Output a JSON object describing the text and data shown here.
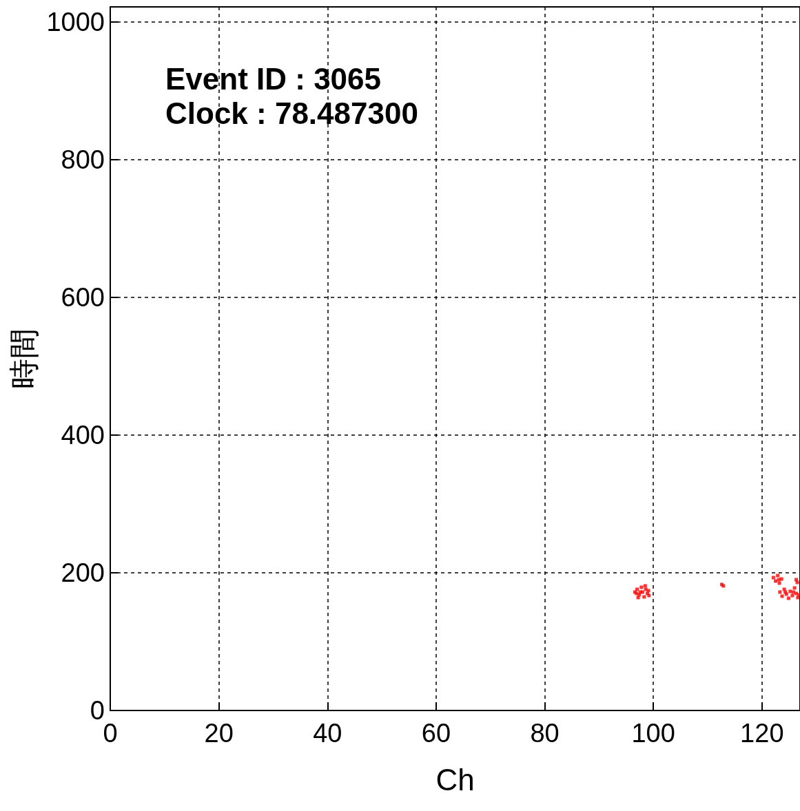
{
  "chart_data": {
    "type": "scatter",
    "xlabel": "Ch",
    "ylabel": "時間",
    "annotations": [
      "Event ID : 3065",
      "Clock : 78.487300"
    ],
    "xlim": [
      0,
      127
    ],
    "xticks": [
      0,
      20,
      40,
      60,
      80,
      100,
      120
    ],
    "ylim": [
      0,
      1022
    ],
    "yticks": [
      0,
      200,
      400,
      600,
      800,
      1000
    ],
    "grid": true,
    "marker": "square",
    "series": [
      {
        "color": "#ff0000",
        "x": [
          96.6,
          97.0,
          97.4,
          97.8,
          98.0,
          98.3,
          98.6,
          98.9,
          99.2,
          97.2,
          96.9,
          98.5,
          99.1,
          97.6,
          112.6,
          112.9,
          122.1,
          122.5,
          122.9,
          123.2,
          123.6,
          123.1,
          126.3,
          126.5,
          123.3,
          123.7,
          124.1,
          124.5,
          124.9,
          125.2,
          125.6,
          126.0,
          126.3,
          126.6,
          124.3,
          125.8,
          126.8
        ],
        "values": [
          172,
          176,
          168,
          179,
          172,
          165,
          176,
          170,
          167,
          164,
          170,
          181,
          174,
          172,
          183,
          181,
          193,
          188,
          196,
          185,
          191,
          190,
          190,
          186,
          172,
          166,
          176,
          169,
          163,
          173,
          167,
          178,
          170,
          164,
          172,
          172,
          168
        ]
      }
    ]
  }
}
